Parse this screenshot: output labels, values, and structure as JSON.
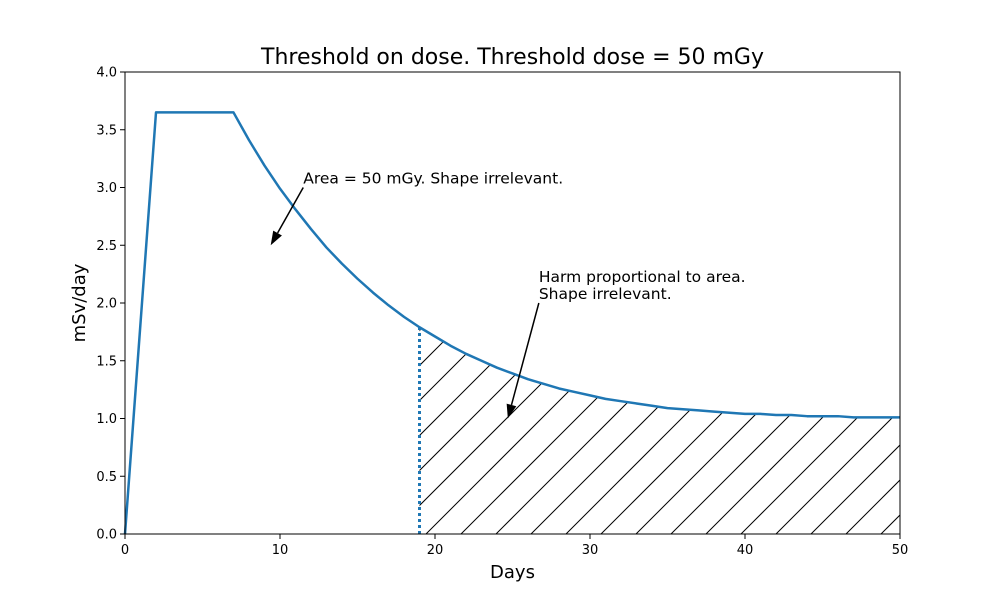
{
  "chart_data": {
    "type": "line",
    "title": "Threshold on dose. Threshold dose = 50 mGy",
    "xlabel": "Days",
    "ylabel": "mSv/day",
    "xlim": [
      0,
      50
    ],
    "ylim": [
      0,
      4.0
    ],
    "xticks": [
      0,
      10,
      20,
      30,
      40,
      50
    ],
    "yticks": [
      0.0,
      0.5,
      1.0,
      1.5,
      2.0,
      2.5,
      3.0,
      3.5,
      4.0
    ],
    "grid": false,
    "line_color": "#1f77b4",
    "series": [
      {
        "x": [
          0,
          2,
          7,
          8,
          9,
          10,
          11,
          12,
          13,
          14,
          15,
          16,
          17,
          18,
          19,
          20,
          21,
          22,
          23,
          24,
          25,
          26,
          27,
          28,
          29,
          30,
          31,
          32,
          33,
          34,
          35,
          36,
          37,
          38,
          39,
          40,
          41,
          42,
          43,
          44,
          45,
          46,
          47,
          48,
          49,
          50
        ],
        "y": [
          0,
          3.65,
          3.65,
          3.41,
          3.19,
          2.99,
          2.81,
          2.64,
          2.48,
          2.34,
          2.21,
          2.09,
          1.98,
          1.88,
          1.79,
          1.71,
          1.63,
          1.56,
          1.5,
          1.44,
          1.39,
          1.34,
          1.3,
          1.26,
          1.23,
          1.2,
          1.17,
          1.15,
          1.13,
          1.11,
          1.09,
          1.08,
          1.07,
          1.06,
          1.05,
          1.04,
          1.04,
          1.03,
          1.03,
          1.02,
          1.02,
          1.02,
          1.01,
          1.01,
          1.01,
          1.01
        ]
      }
    ],
    "threshold_day": 19,
    "hatched_region": {
      "from_x": 19,
      "to_x": 50
    },
    "annotations": [
      {
        "text": "Area = 50 mGy.  Shape irrelevant.",
        "text_x": 11.5,
        "text_y": 3.0,
        "arrow_to_x": 9.4,
        "arrow_to_y": 2.5
      },
      {
        "text_lines": [
          "Harm proportional to area.",
          "Shape irrelevant."
        ],
        "text_x": 26.7,
        "text_y": 2.0,
        "arrow_to_x": 24.7,
        "arrow_to_y": 1.0
      }
    ]
  }
}
